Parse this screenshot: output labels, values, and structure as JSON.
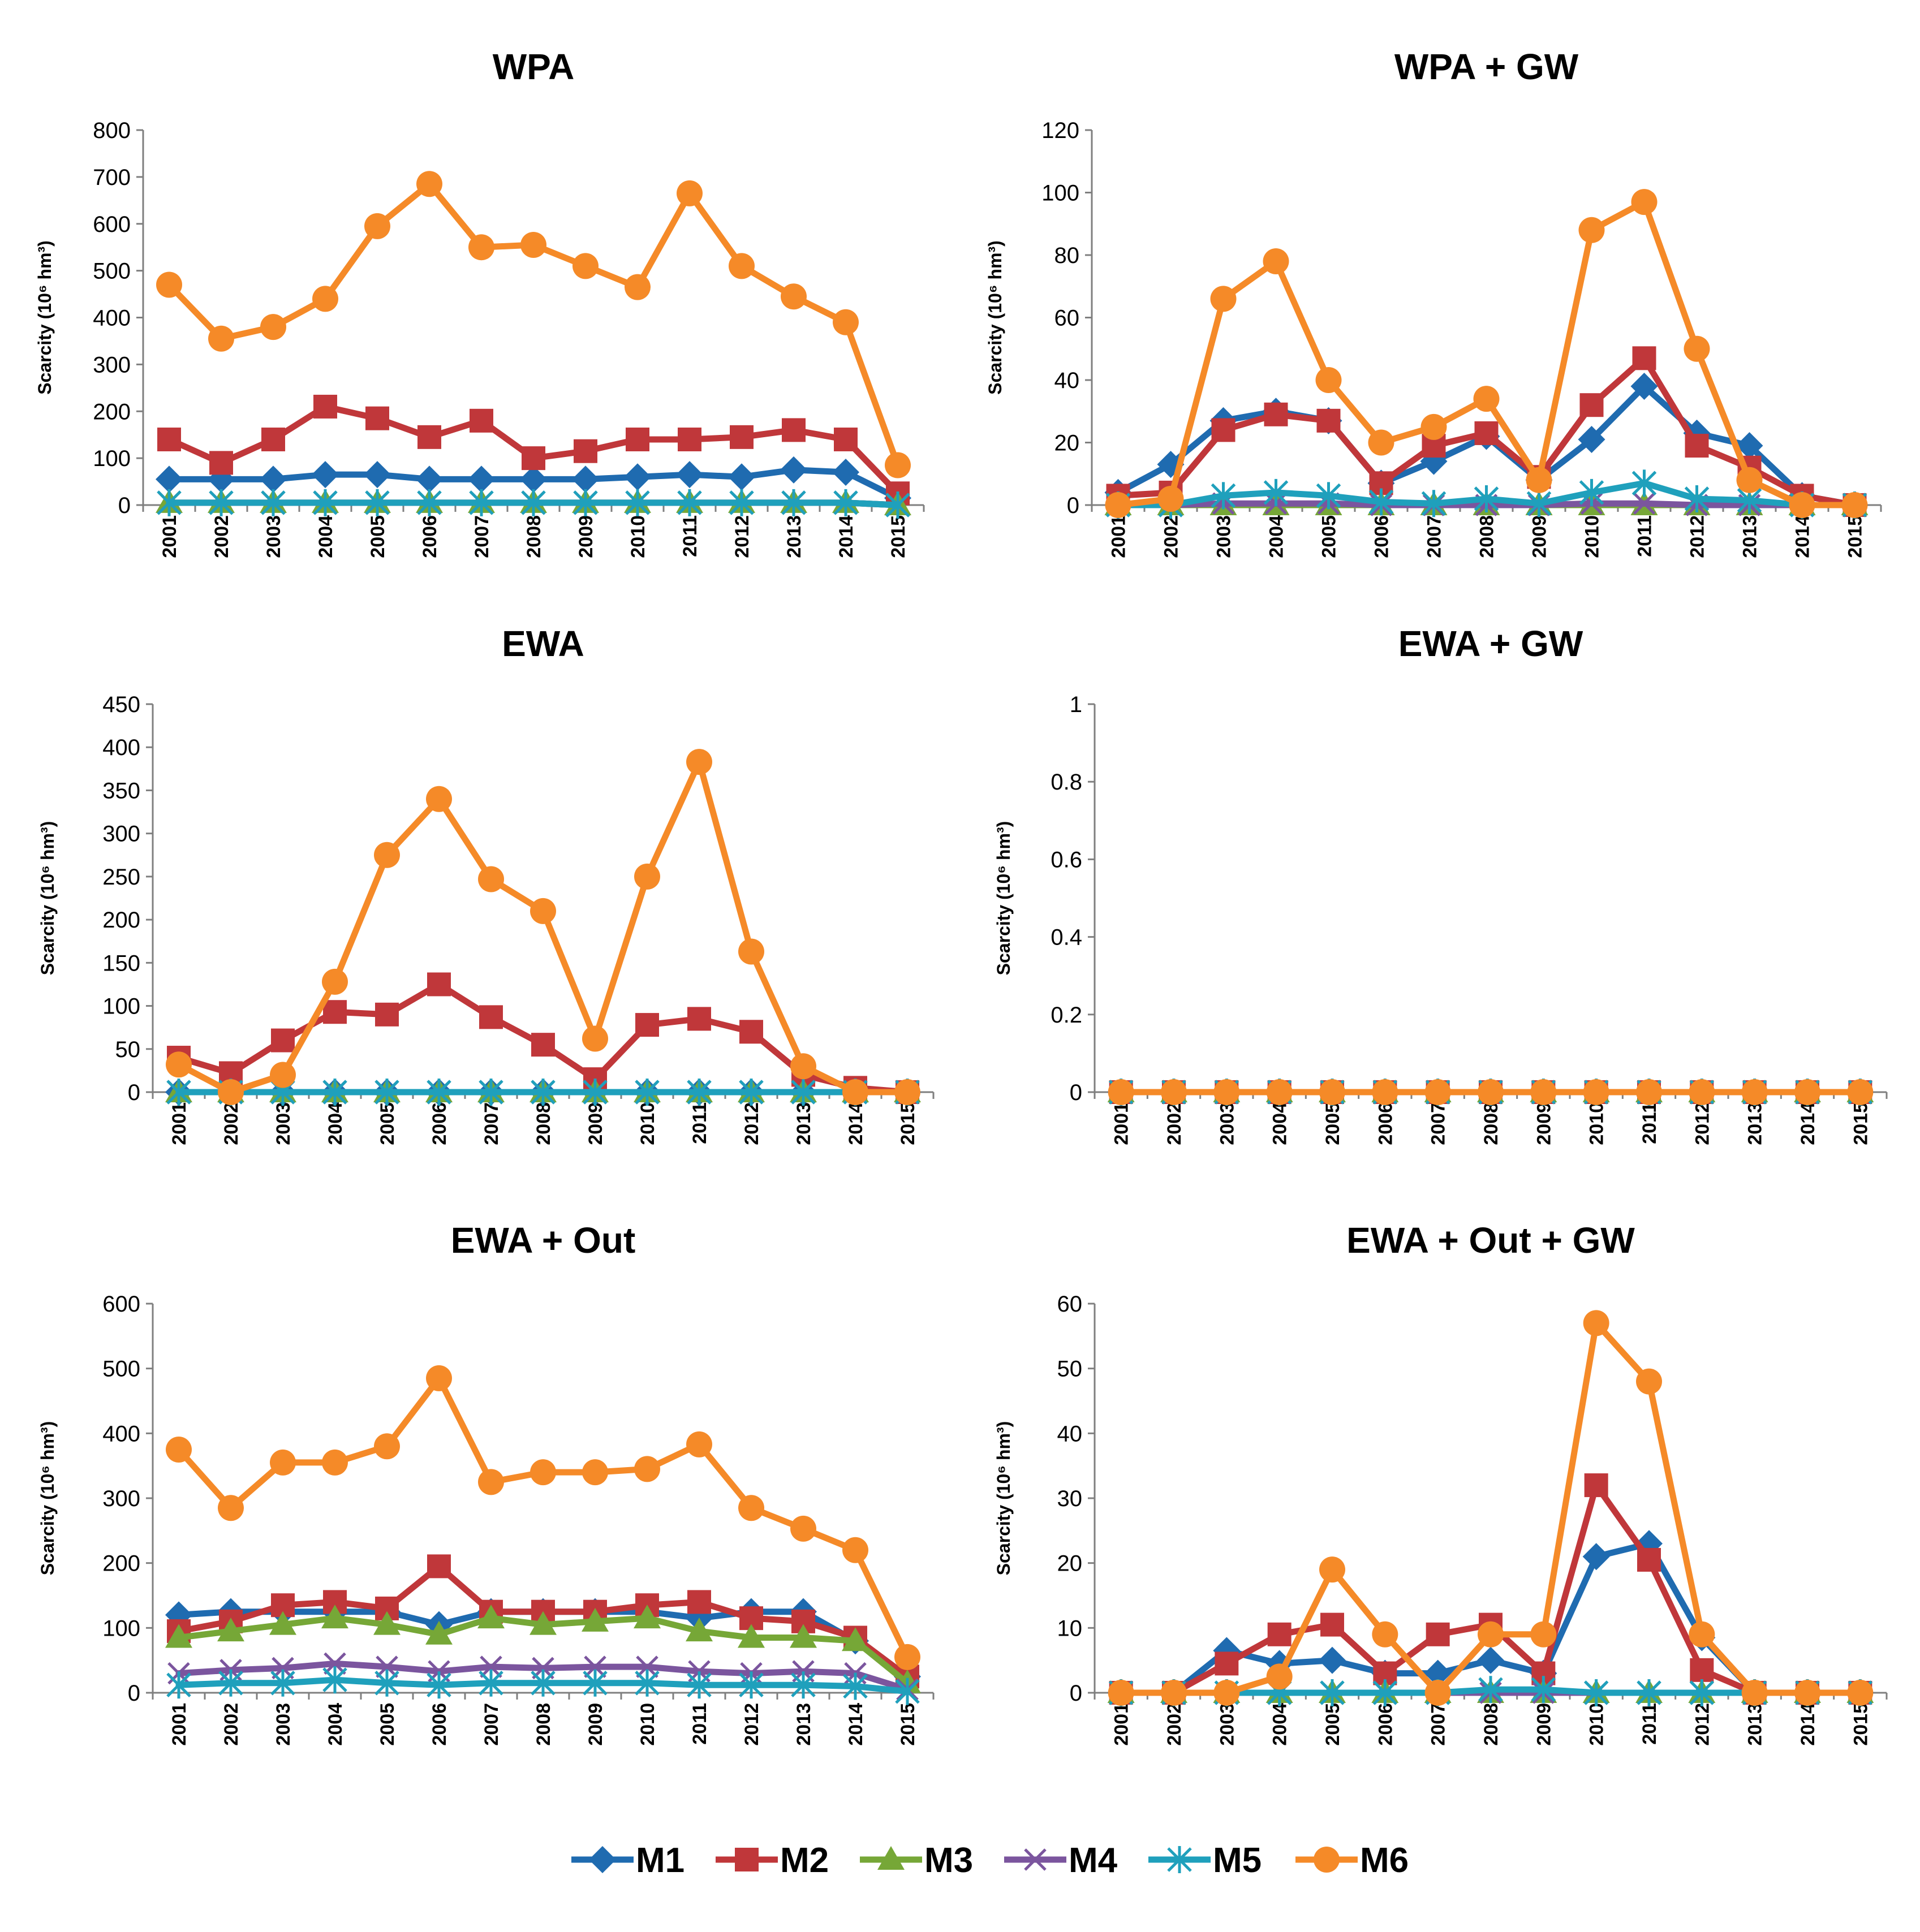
{
  "legend": {
    "series": [
      {
        "name": "M1",
        "color": "#1F6BB0",
        "marker": "diamond"
      },
      {
        "name": "M2",
        "color": "#C0373A",
        "marker": "square"
      },
      {
        "name": "M3",
        "color": "#76A737",
        "marker": "triangle"
      },
      {
        "name": "M4",
        "color": "#7B559E",
        "marker": "x"
      },
      {
        "name": "M5",
        "color": "#1FA0BC",
        "marker": "star"
      },
      {
        "name": "M6",
        "color": "#F58A28",
        "marker": "circle"
      }
    ]
  },
  "chart_data": [
    {
      "type": "line",
      "title": "WPA",
      "ylabel": "Scarcity (10⁶ hm³)",
      "ylim": [
        0,
        800
      ],
      "yticks": [
        "0",
        "100",
        "200",
        "300",
        "400",
        "500",
        "600",
        "700",
        "800"
      ],
      "ytick_values": [
        0,
        100,
        200,
        300,
        400,
        500,
        600,
        700,
        800
      ],
      "categories": [
        "2001",
        "2002",
        "2003",
        "2004",
        "2005",
        "2006",
        "2007",
        "2008",
        "2009",
        "2010",
        "2011",
        "2012",
        "2013",
        "2014",
        "2015"
      ],
      "series": [
        {
          "name": "M1",
          "values": [
            55,
            55,
            55,
            65,
            65,
            55,
            55,
            55,
            55,
            60,
            65,
            60,
            75,
            70,
            15
          ]
        },
        {
          "name": "M2",
          "values": [
            140,
            90,
            140,
            210,
            185,
            145,
            180,
            100,
            115,
            140,
            140,
            145,
            160,
            140,
            25
          ]
        },
        {
          "name": "M3",
          "values": [
            5,
            5,
            5,
            5,
            5,
            5,
            5,
            5,
            5,
            5,
            5,
            5,
            5,
            5,
            0
          ]
        },
        {
          "name": "M4",
          "values": [
            5,
            5,
            5,
            5,
            5,
            5,
            5,
            5,
            5,
            5,
            5,
            5,
            5,
            5,
            0
          ]
        },
        {
          "name": "M5",
          "values": [
            5,
            5,
            5,
            5,
            5,
            5,
            5,
            5,
            5,
            5,
            5,
            5,
            5,
            5,
            0
          ]
        },
        {
          "name": "M6",
          "values": [
            470,
            355,
            380,
            440,
            595,
            685,
            550,
            555,
            510,
            465,
            665,
            510,
            445,
            390,
            85
          ]
        }
      ]
    },
    {
      "type": "line",
      "title": "WPA + GW",
      "ylabel": "Scarcity (10⁶ hm³)",
      "ylim": [
        0,
        120
      ],
      "yticks": [
        "0",
        "20",
        "40",
        "60",
        "80",
        "100",
        "120"
      ],
      "ytick_values": [
        0,
        20,
        40,
        60,
        80,
        100,
        120
      ],
      "categories": [
        "2001",
        "2002",
        "2003",
        "2004",
        "2005",
        "2006",
        "2007",
        "2008",
        "2009",
        "2010",
        "2011",
        "2012",
        "2013",
        "2014",
        "2015"
      ],
      "series": [
        {
          "name": "M1",
          "values": [
            4,
            13,
            27,
            30,
            27,
            7,
            14,
            22,
            8,
            21,
            38,
            23,
            19,
            3,
            0
          ]
        },
        {
          "name": "M2",
          "values": [
            3,
            4,
            24,
            29,
            27,
            7,
            19,
            23,
            9,
            32,
            47,
            19,
            12,
            3,
            0
          ]
        },
        {
          "name": "M3",
          "values": [
            0,
            0,
            0,
            0,
            0,
            0,
            0,
            0,
            0,
            0,
            0,
            0,
            0,
            0,
            0
          ]
        },
        {
          "name": "M4",
          "values": [
            0,
            0,
            0.5,
            0.5,
            0.5,
            0,
            0,
            0,
            0,
            0.5,
            0.5,
            0,
            0,
            0,
            0
          ]
        },
        {
          "name": "M5",
          "values": [
            0,
            0,
            3,
            4,
            3,
            1,
            0.5,
            2,
            0.5,
            4,
            7,
            2,
            1.5,
            0,
            0
          ]
        },
        {
          "name": "M6",
          "values": [
            0,
            2,
            66,
            78,
            40,
            20,
            25,
            34,
            8,
            88,
            97,
            50,
            8,
            0,
            0
          ]
        }
      ]
    },
    {
      "type": "line",
      "title": "EWA",
      "ylabel": "Scarcity (10⁶ hm³)",
      "ylim": [
        0,
        450
      ],
      "yticks": [
        "0",
        "50",
        "100",
        "150",
        "200",
        "250",
        "300",
        "350",
        "400",
        "450"
      ],
      "ytick_values": [
        0,
        50,
        100,
        150,
        200,
        250,
        300,
        350,
        400,
        450
      ],
      "categories": [
        "2001",
        "2002",
        "2003",
        "2004",
        "2005",
        "2006",
        "2007",
        "2008",
        "2009",
        "2010",
        "2011",
        "2012",
        "2013",
        "2014",
        "2015"
      ],
      "series": [
        {
          "name": "M1",
          "values": [
            0,
            0,
            0,
            0,
            0,
            0,
            0,
            0,
            0,
            0,
            0,
            0,
            0,
            0,
            0
          ]
        },
        {
          "name": "M2",
          "values": [
            40,
            22,
            60,
            93,
            90,
            125,
            87,
            55,
            15,
            78,
            85,
            70,
            20,
            5,
            0
          ]
        },
        {
          "name": "M3",
          "values": [
            0,
            0,
            0,
            0,
            0,
            0,
            0,
            0,
            0,
            0,
            0,
            0,
            0,
            0,
            0
          ]
        },
        {
          "name": "M4",
          "values": [
            0,
            0,
            0,
            0,
            0,
            0,
            0,
            0,
            0,
            0,
            0,
            0,
            0,
            0,
            0
          ]
        },
        {
          "name": "M5",
          "values": [
            0,
            0,
            0,
            0,
            0,
            0,
            0,
            0,
            0,
            0,
            0,
            0,
            0,
            0,
            0
          ]
        },
        {
          "name": "M6",
          "values": [
            32,
            0,
            20,
            128,
            275,
            340,
            247,
            210,
            62,
            250,
            383,
            163,
            30,
            0,
            0
          ]
        }
      ]
    },
    {
      "type": "line",
      "title": "EWA + GW",
      "ylabel": "Scarcity (10⁶ hm³)",
      "ylim": [
        0,
        1
      ],
      "yticks": [
        "0",
        "0.2",
        "0.4",
        "0.6",
        "0.8",
        "1"
      ],
      "ytick_values": [
        0,
        0.2,
        0.4,
        0.6,
        0.8,
        1
      ],
      "categories": [
        "2001",
        "2002",
        "2003",
        "2004",
        "2005",
        "2006",
        "2007",
        "2008",
        "2009",
        "2010",
        "2011",
        "2012",
        "2013",
        "2014",
        "2015"
      ],
      "series": [
        {
          "name": "M1",
          "values": [
            0,
            0,
            0,
            0,
            0,
            0,
            0,
            0,
            0,
            0,
            0,
            0,
            0,
            0,
            0
          ]
        },
        {
          "name": "M2",
          "values": [
            0,
            0,
            0,
            0,
            0,
            0,
            0,
            0,
            0,
            0,
            0,
            0,
            0,
            0,
            0
          ]
        },
        {
          "name": "M3",
          "values": [
            0,
            0,
            0,
            0,
            0,
            0,
            0,
            0,
            0,
            0,
            0,
            0,
            0,
            0,
            0
          ]
        },
        {
          "name": "M4",
          "values": [
            0,
            0,
            0,
            0,
            0,
            0,
            0,
            0,
            0,
            0,
            0,
            0,
            0,
            0,
            0
          ]
        },
        {
          "name": "M5",
          "values": [
            0,
            0,
            0,
            0,
            0,
            0,
            0,
            0,
            0,
            0,
            0,
            0,
            0,
            0,
            0
          ]
        },
        {
          "name": "M6",
          "values": [
            0,
            0,
            0,
            0,
            0,
            0,
            0,
            0,
            0,
            0,
            0,
            0,
            0,
            0,
            0
          ]
        }
      ]
    },
    {
      "type": "line",
      "title": "EWA + Out",
      "ylabel": "Scarcity (10⁶ hm³)",
      "ylim": [
        0,
        600
      ],
      "yticks": [
        "0",
        "100",
        "200",
        "300",
        "400",
        "500",
        "600"
      ],
      "ytick_values": [
        0,
        100,
        200,
        300,
        400,
        500,
        600
      ],
      "categories": [
        "2001",
        "2002",
        "2003",
        "2004",
        "2005",
        "2006",
        "2007",
        "2008",
        "2009",
        "2010",
        "2011",
        "2012",
        "2013",
        "2014",
        "2015"
      ],
      "series": [
        {
          "name": "M1",
          "values": [
            120,
            125,
            125,
            125,
            125,
            105,
            125,
            125,
            125,
            125,
            115,
            125,
            125,
            80,
            25
          ]
        },
        {
          "name": "M2",
          "values": [
            95,
            110,
            135,
            140,
            130,
            195,
            125,
            125,
            125,
            135,
            140,
            115,
            110,
            85,
            25
          ]
        },
        {
          "name": "M3",
          "values": [
            85,
            95,
            105,
            115,
            105,
            90,
            115,
            105,
            110,
            115,
            95,
            85,
            85,
            80,
            15
          ]
        },
        {
          "name": "M4",
          "values": [
            30,
            35,
            38,
            45,
            40,
            33,
            40,
            38,
            40,
            40,
            33,
            30,
            33,
            30,
            5
          ]
        },
        {
          "name": "M5",
          "values": [
            12,
            15,
            15,
            20,
            15,
            12,
            15,
            15,
            15,
            15,
            12,
            12,
            12,
            10,
            2
          ]
        },
        {
          "name": "M6",
          "values": [
            375,
            285,
            355,
            355,
            380,
            485,
            325,
            340,
            340,
            345,
            383,
            285,
            253,
            220,
            55
          ]
        }
      ]
    },
    {
      "type": "line",
      "title": "EWA + Out + GW",
      "ylabel": "Scarcity (10⁶ hm³)",
      "ylim": [
        0,
        60
      ],
      "yticks": [
        "0",
        "10",
        "20",
        "30",
        "40",
        "50",
        "60"
      ],
      "ytick_values": [
        0,
        10,
        20,
        30,
        40,
        50,
        60
      ],
      "categories": [
        "2001",
        "2002",
        "2003",
        "2004",
        "2005",
        "2006",
        "2007",
        "2008",
        "2009",
        "2010",
        "2011",
        "2012",
        "2013",
        "2014",
        "2015"
      ],
      "series": [
        {
          "name": "M1",
          "values": [
            0,
            0,
            6.5,
            4.5,
            5,
            3,
            3,
            5,
            3,
            21,
            23,
            8.5,
            0,
            0,
            0
          ]
        },
        {
          "name": "M2",
          "values": [
            0,
            0,
            4.5,
            9,
            10.5,
            3,
            9,
            10.5,
            3,
            32,
            20.5,
            3.5,
            0,
            0,
            0
          ]
        },
        {
          "name": "M3",
          "values": [
            0,
            0,
            0,
            0,
            0,
            0,
            0,
            0,
            0,
            0,
            0,
            0,
            0,
            0,
            0
          ]
        },
        {
          "name": "M4",
          "values": [
            0,
            0,
            0,
            0,
            0,
            0,
            0,
            0,
            0,
            0,
            0,
            0,
            0,
            0,
            0
          ]
        },
        {
          "name": "M5",
          "values": [
            0,
            0,
            0,
            0,
            0,
            0,
            0,
            0.5,
            0.5,
            0,
            0,
            0,
            0,
            0,
            0
          ]
        },
        {
          "name": "M6",
          "values": [
            0,
            0,
            0,
            2.5,
            19,
            9,
            0,
            9,
            9,
            57,
            48,
            9,
            0,
            0,
            0
          ]
        }
      ]
    }
  ]
}
